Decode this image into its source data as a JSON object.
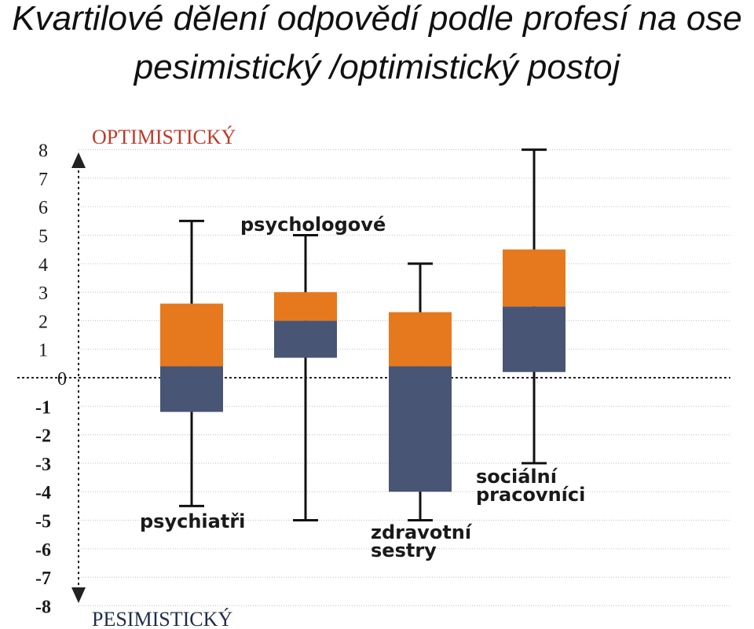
{
  "page": {
    "title_line_1": "Kvartilové dělení odpovědí podle profesí na ose",
    "title_line_2": "pesimistický /optimistický postoj"
  },
  "chart_data": {
    "type": "boxplot",
    "y_ticks": [
      "8",
      "7",
      "6",
      "5",
      "4",
      "3",
      "2",
      "1",
      "0",
      "-1",
      "-2",
      "-3",
      "-4",
      "-5",
      "-6",
      "-7",
      "-8"
    ],
    "ylim": [
      -8,
      8
    ],
    "axis_top_label": "OPTIMISTICKÝ",
    "axis_bottom_label": "PESIMISTICKÝ",
    "grid": "dotted",
    "colors": {
      "upper_box": "#E6781E",
      "lower_box": "#485574",
      "top_label": "#C0392B",
      "bottom_label": "#1F2D4A"
    },
    "series": [
      {
        "name": "psychiatři",
        "label_lines": [
          "psychiatři"
        ],
        "label_position": "below",
        "min": -4.5,
        "q1": -1.2,
        "median": 0.4,
        "q3": 2.6,
        "max": 5.5
      },
      {
        "name": "psychologové",
        "label_lines": [
          "psychologové"
        ],
        "label_position": "above",
        "min": -5,
        "q1": 0.7,
        "median": 2.0,
        "q3": 3.0,
        "max": 5.0
      },
      {
        "name": "zdravotní sestry",
        "label_lines": [
          "zdravotní",
          "sestry"
        ],
        "label_position": "below",
        "min": -5,
        "q1": -4,
        "median": 0.4,
        "q3": 2.3,
        "max": 4.0
      },
      {
        "name": "sociální pracovníci",
        "label_lines": [
          "sociální",
          "pracovníci"
        ],
        "label_position": "below",
        "min": -3,
        "q1": 0.2,
        "median": 2.5,
        "q3": 4.5,
        "max": 8.0
      }
    ]
  }
}
